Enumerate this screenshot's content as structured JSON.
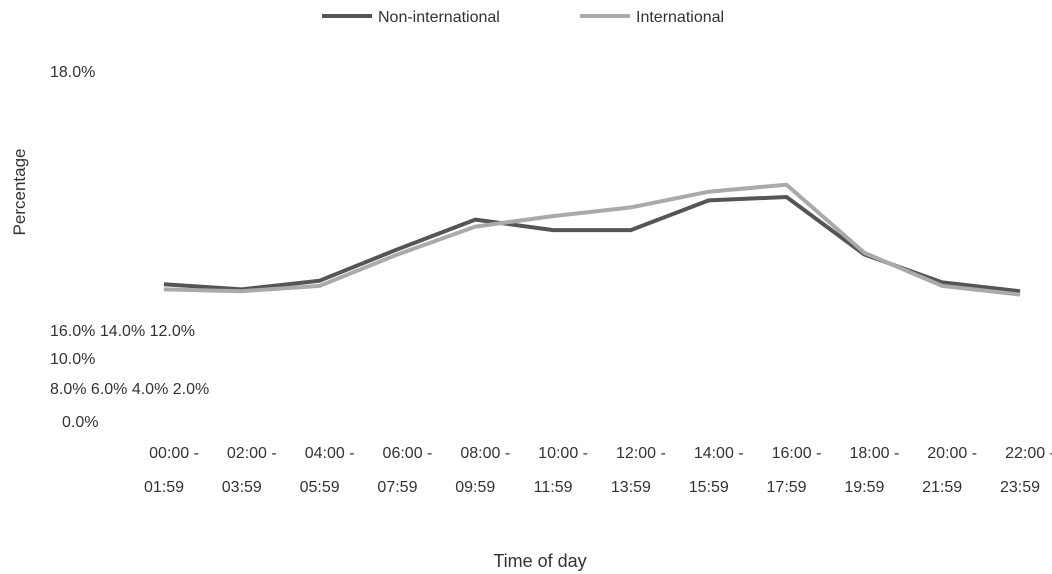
{
  "chart_data": {
    "type": "line",
    "xlabel": "Time of day",
    "ylabel": "Percentage",
    "categories": [
      [
        "00:00 -",
        "01:59"
      ],
      [
        "02:00 -",
        "03:59"
      ],
      [
        "04:00 -",
        "05:59"
      ],
      [
        "06:00 -",
        "07:59"
      ],
      [
        "08:00 -",
        "09:59"
      ],
      [
        "10:00 -",
        "11:59"
      ],
      [
        "12:00 -",
        "13:59"
      ],
      [
        "14:00 -",
        "15:59"
      ],
      [
        "16:00 -",
        "17:59"
      ],
      [
        "18:00 -",
        "19:59"
      ],
      [
        "20:00 -",
        "21:59"
      ],
      [
        "22:00 -",
        "23:59"
      ]
    ],
    "y_tick_labels": {
      "top": "18.0%",
      "row1": "16.0% 14.0% 12.0%",
      "row2": "10.0%",
      "row3": "8.0% 6.0% 4.0% 2.0%",
      "row4": "0.0%"
    },
    "ylim": [
      0,
      18
    ],
    "series": [
      {
        "name": "Non-international",
        "color": "#555555",
        "values": [
          3.2,
          2.9,
          3.4,
          5.2,
          6.9,
          6.3,
          6.3,
          8.0,
          8.2,
          4.9,
          3.3,
          2.8
        ]
      },
      {
        "name": "International",
        "color": "#aaaaaa",
        "values": [
          2.9,
          2.8,
          3.1,
          4.9,
          6.5,
          7.1,
          7.6,
          8.5,
          8.9,
          5.0,
          3.1,
          2.6
        ]
      }
    ],
    "legend_position": "top",
    "grid": false
  }
}
